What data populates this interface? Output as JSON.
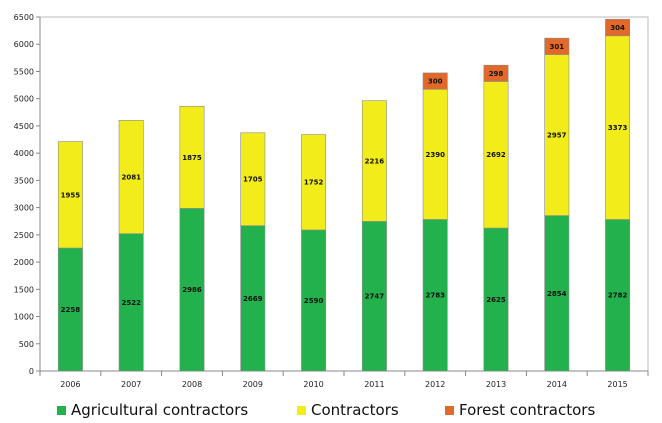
{
  "chart_data": {
    "type": "bar",
    "stacked": true,
    "categories": [
      "2006",
      "2007",
      "2008",
      "2009",
      "2010",
      "2011",
      "2012",
      "2013",
      "2014",
      "2015"
    ],
    "series": [
      {
        "name": "Agricultural contractors",
        "color": "#22b14c",
        "values": [
          2258,
          2522,
          2986,
          2669,
          2590,
          2747,
          2783,
          2625,
          2854,
          2782
        ]
      },
      {
        "name": "Contractors",
        "color": "#f2ec1a",
        "values": [
          1955,
          2081,
          1875,
          1705,
          1752,
          2216,
          2390,
          2692,
          2957,
          3373
        ]
      },
      {
        "name": "Forest contractors",
        "color": "#e2692a",
        "values": [
          null,
          null,
          null,
          null,
          null,
          null,
          300,
          298,
          301,
          304
        ]
      }
    ],
    "ylim": [
      0,
      6500
    ],
    "yticks": [
      0,
      500,
      1000,
      1500,
      2000,
      2500,
      3000,
      3500,
      4000,
      4500,
      5000,
      5500,
      6000,
      6500
    ],
    "grid": false,
    "legend": "bottom",
    "title": "",
    "xlabel": "",
    "ylabel": ""
  }
}
